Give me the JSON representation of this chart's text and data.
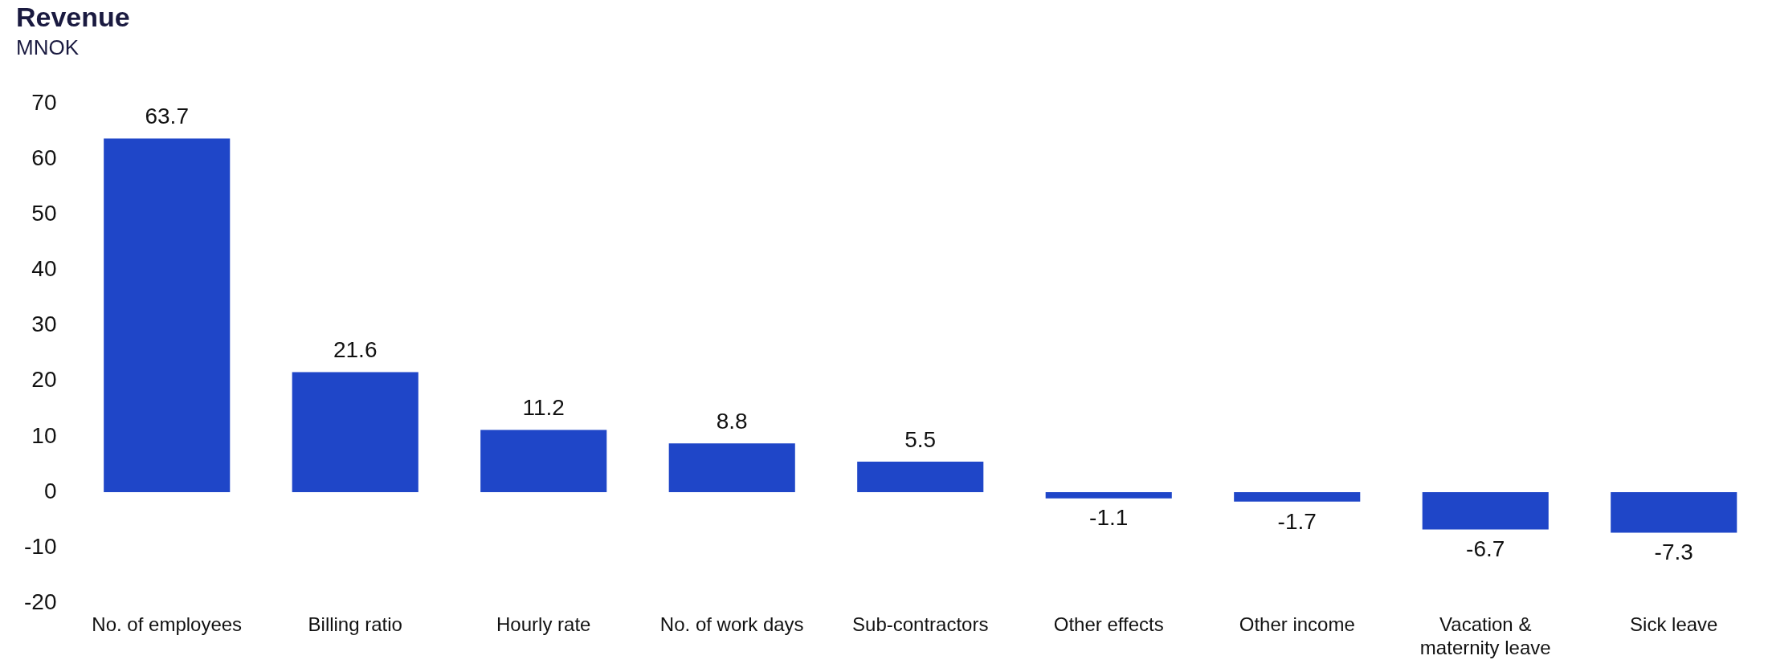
{
  "chart_data": {
    "type": "bar",
    "title": "Revenue",
    "subtitle": "MNOK",
    "categories": [
      "No. of employees",
      "Billing ratio",
      "Hourly rate",
      "No. of work days",
      "Sub-contractors",
      "Other effects",
      "Other income",
      "Vacation & maternity leave",
      "Sick leave"
    ],
    "values": [
      63.7,
      21.6,
      11.2,
      8.8,
      5.5,
      -1.1,
      -1.7,
      -6.7,
      -7.3
    ],
    "color": "#1f46c8",
    "ylim": [
      -20,
      70
    ],
    "yticks": [
      -20,
      -10,
      0,
      10,
      20,
      30,
      40,
      50,
      60,
      70
    ],
    "grid": false,
    "legend": false,
    "data_labels": true
  }
}
